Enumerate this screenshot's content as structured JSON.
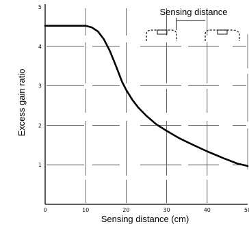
{
  "chart_data": {
    "type": "line",
    "title": "",
    "xlabel": "Sensing distance (cm)",
    "ylabel": "Excess gain ratio",
    "xlim": [
      0,
      50
    ],
    "ylim": [
      0,
      5
    ],
    "x_ticks": [
      "0",
      "10",
      "20",
      "30",
      "40",
      "50"
    ],
    "y_ticks": [
      "1",
      "2",
      "3",
      "4",
      "5"
    ],
    "grid": true,
    "inset_label": "Sensing distance",
    "series": [
      {
        "name": "",
        "x": [
          0,
          10,
          11.5,
          13,
          14.5,
          16,
          17.5,
          19,
          20,
          21.5,
          23,
          25,
          27.5,
          30,
          33,
          36,
          40,
          44,
          47.5,
          50
        ],
        "y": [
          4.52,
          4.52,
          4.48,
          4.38,
          4.18,
          3.88,
          3.5,
          3.1,
          2.9,
          2.65,
          2.45,
          2.24,
          2.02,
          1.86,
          1.68,
          1.53,
          1.34,
          1.17,
          1.03,
          0.97
        ]
      }
    ]
  }
}
